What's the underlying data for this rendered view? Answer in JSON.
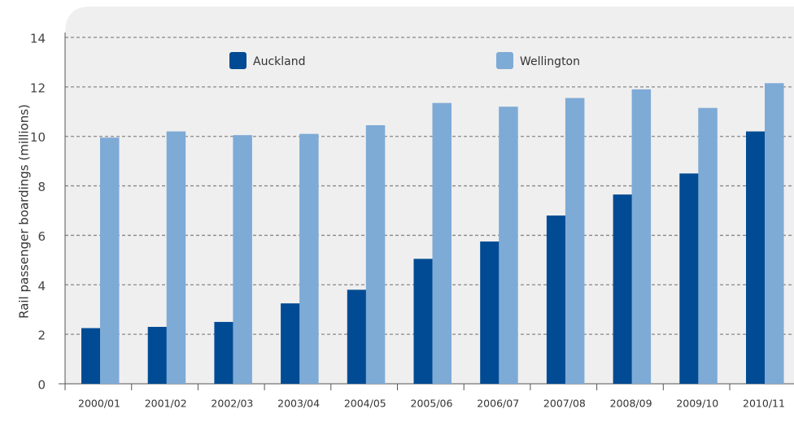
{
  "chart_data": {
    "type": "bar",
    "y_axis_label": "Rail passenger boardings (millions)",
    "categories": [
      "2000/01",
      "2001/02",
      "2002/03",
      "2003/04",
      "2004/05",
      "2005/06",
      "2006/07",
      "2007/08",
      "2008/09",
      "2009/10",
      "2010/11"
    ],
    "series": [
      {
        "name": "Auckland",
        "color": "#004b93",
        "values": [
          2.25,
          2.3,
          2.5,
          3.25,
          3.8,
          5.05,
          5.75,
          6.8,
          7.65,
          8.5,
          10.2
        ]
      },
      {
        "name": "Wellington",
        "color": "#7eaad6",
        "values": [
          9.95,
          10.2,
          10.05,
          10.1,
          10.45,
          11.35,
          11.2,
          11.55,
          11.9,
          11.15,
          12.15
        ]
      }
    ],
    "ylim": [
      0,
      14
    ],
    "yticks": [
      0,
      2,
      4,
      6,
      8,
      10,
      12,
      14
    ],
    "grid": true
  }
}
